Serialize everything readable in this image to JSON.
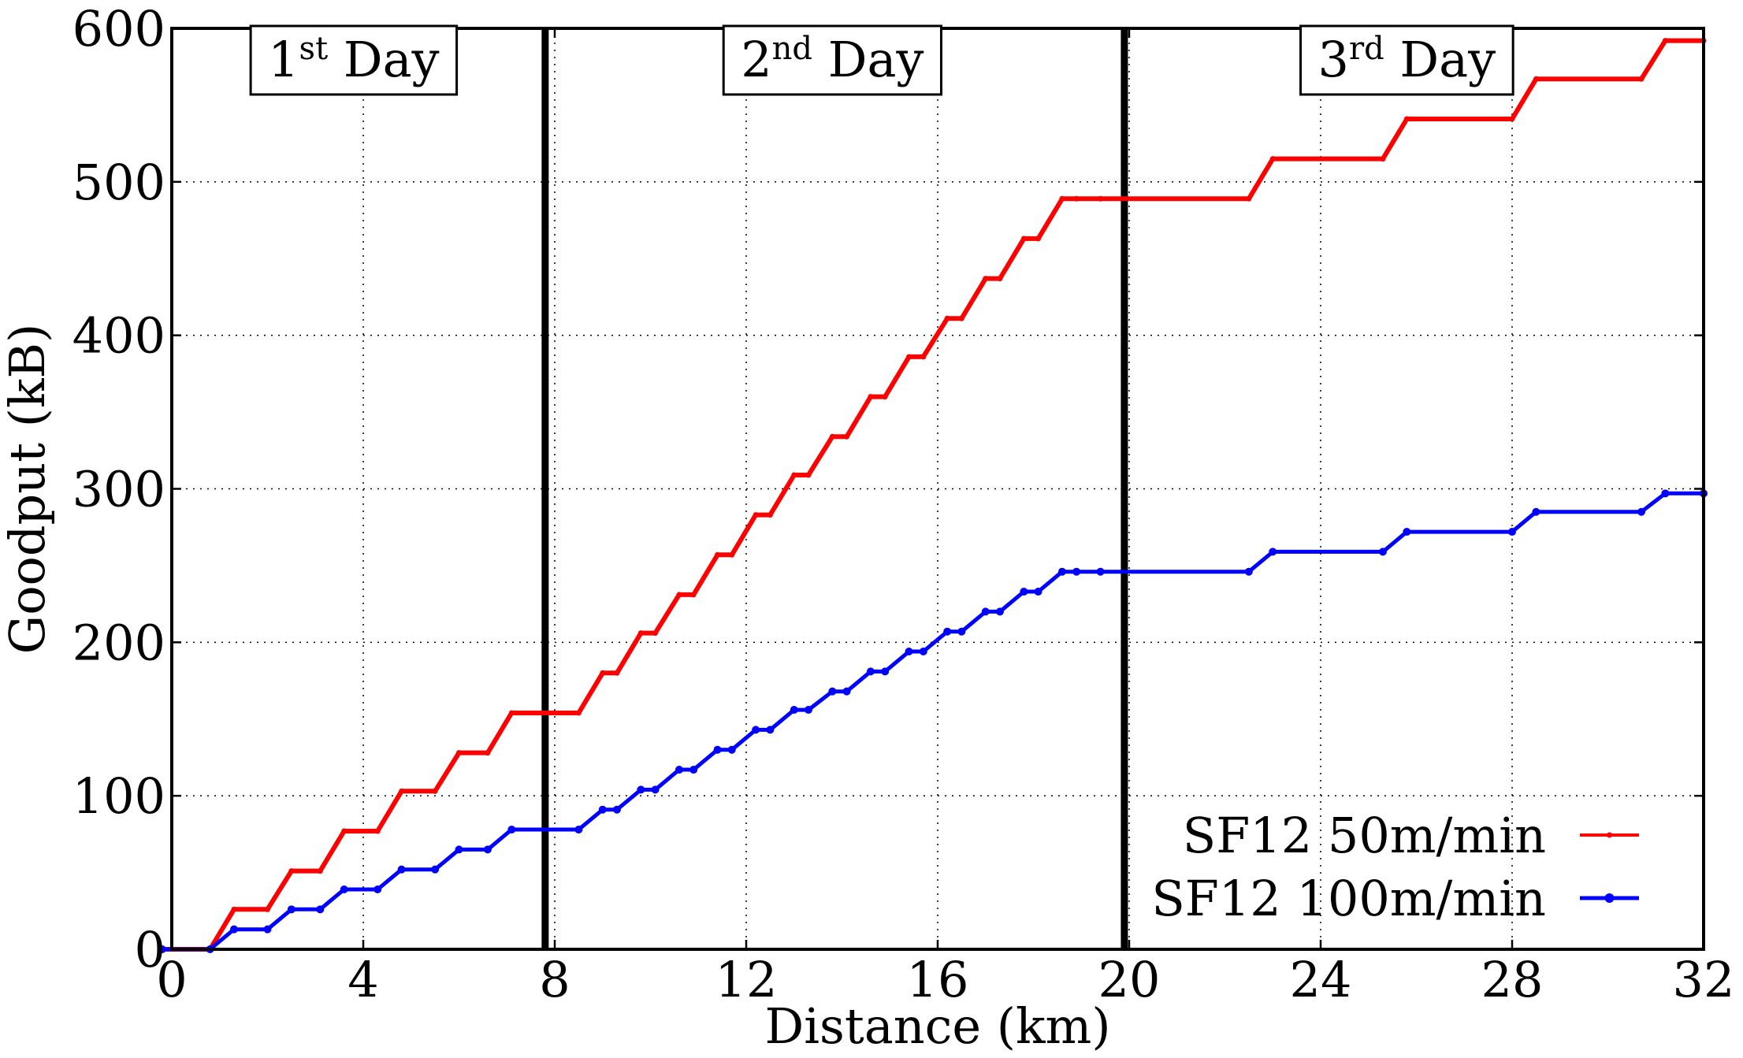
{
  "chart_data": {
    "type": "line",
    "title": "",
    "xlabel": "Distance (km)",
    "ylabel": "Goodput (kB)",
    "xlim": [
      0,
      32
    ],
    "ylim": [
      0,
      600
    ],
    "xticks": [
      0,
      4,
      8,
      12,
      16,
      20,
      24,
      28,
      32
    ],
    "yticks": [
      0,
      100,
      200,
      300,
      400,
      500,
      600
    ],
    "grid": true,
    "legend_position": "lower-right",
    "vertical_lines": [
      7.8,
      19.9
    ],
    "annotations": [
      {
        "label": "1",
        "suffix": "st",
        "word": "Day",
        "x": 3.8,
        "y": 580
      },
      {
        "label": "2",
        "suffix": "nd",
        "word": "Day",
        "x": 13.8,
        "y": 580
      },
      {
        "label": "3",
        "suffix": "rd",
        "word": "Day",
        "x": 25.8,
        "y": 580
      }
    ],
    "series": [
      {
        "name": "SF12 50m/min",
        "color": "#ff0000",
        "marker": "red-dot",
        "x": [
          -0.2,
          0.8,
          1.3,
          2.0,
          2.5,
          3.1,
          3.6,
          4.3,
          4.8,
          5.5,
          6.0,
          6.6,
          7.1,
          8.5,
          9.0,
          9.3,
          9.8,
          10.1,
          10.6,
          10.9,
          11.4,
          11.7,
          12.2,
          12.5,
          13.0,
          13.3,
          13.8,
          14.1,
          14.6,
          14.9,
          15.4,
          15.7,
          16.2,
          16.5,
          17.0,
          17.3,
          17.8,
          18.1,
          18.6,
          18.9,
          19.4,
          22.5,
          23.0,
          25.3,
          25.8,
          28.0,
          28.5,
          30.7,
          31.2,
          32.0
        ],
        "values": [
          0,
          0,
          26,
          26,
          51,
          51,
          77,
          77,
          103,
          103,
          128,
          128,
          154,
          154,
          180,
          180,
          206,
          206,
          231,
          231,
          257,
          257,
          283,
          283,
          309,
          309,
          334,
          334,
          360,
          360,
          386,
          386,
          411,
          411,
          437,
          437,
          463,
          463,
          489,
          489,
          489,
          489,
          515,
          515,
          541,
          541,
          567,
          567,
          592,
          592
        ]
      },
      {
        "name": "SF12 100m/min",
        "color": "#0000ff",
        "marker": "blue-dot",
        "x": [
          -0.2,
          0.8,
          1.3,
          2.0,
          2.5,
          3.1,
          3.6,
          4.3,
          4.8,
          5.5,
          6.0,
          6.6,
          7.1,
          8.5,
          9.0,
          9.3,
          9.8,
          10.1,
          10.6,
          10.9,
          11.4,
          11.7,
          12.2,
          12.5,
          13.0,
          13.3,
          13.8,
          14.1,
          14.6,
          14.9,
          15.4,
          15.7,
          16.2,
          16.5,
          17.0,
          17.3,
          17.8,
          18.1,
          18.6,
          18.9,
          19.4,
          22.5,
          23.0,
          25.3,
          25.8,
          28.0,
          28.5,
          30.7,
          31.2,
          32.0
        ],
        "values": [
          0,
          0,
          13,
          13,
          26,
          26,
          39,
          39,
          52,
          52,
          65,
          65,
          78,
          78,
          91,
          91,
          104,
          104,
          117,
          117,
          130,
          130,
          143,
          143,
          156,
          156,
          168,
          168,
          181,
          181,
          194,
          194,
          207,
          207,
          220,
          220,
          233,
          233,
          246,
          246,
          246,
          246,
          259,
          259,
          272,
          272,
          285,
          285,
          297,
          297
        ]
      }
    ]
  }
}
